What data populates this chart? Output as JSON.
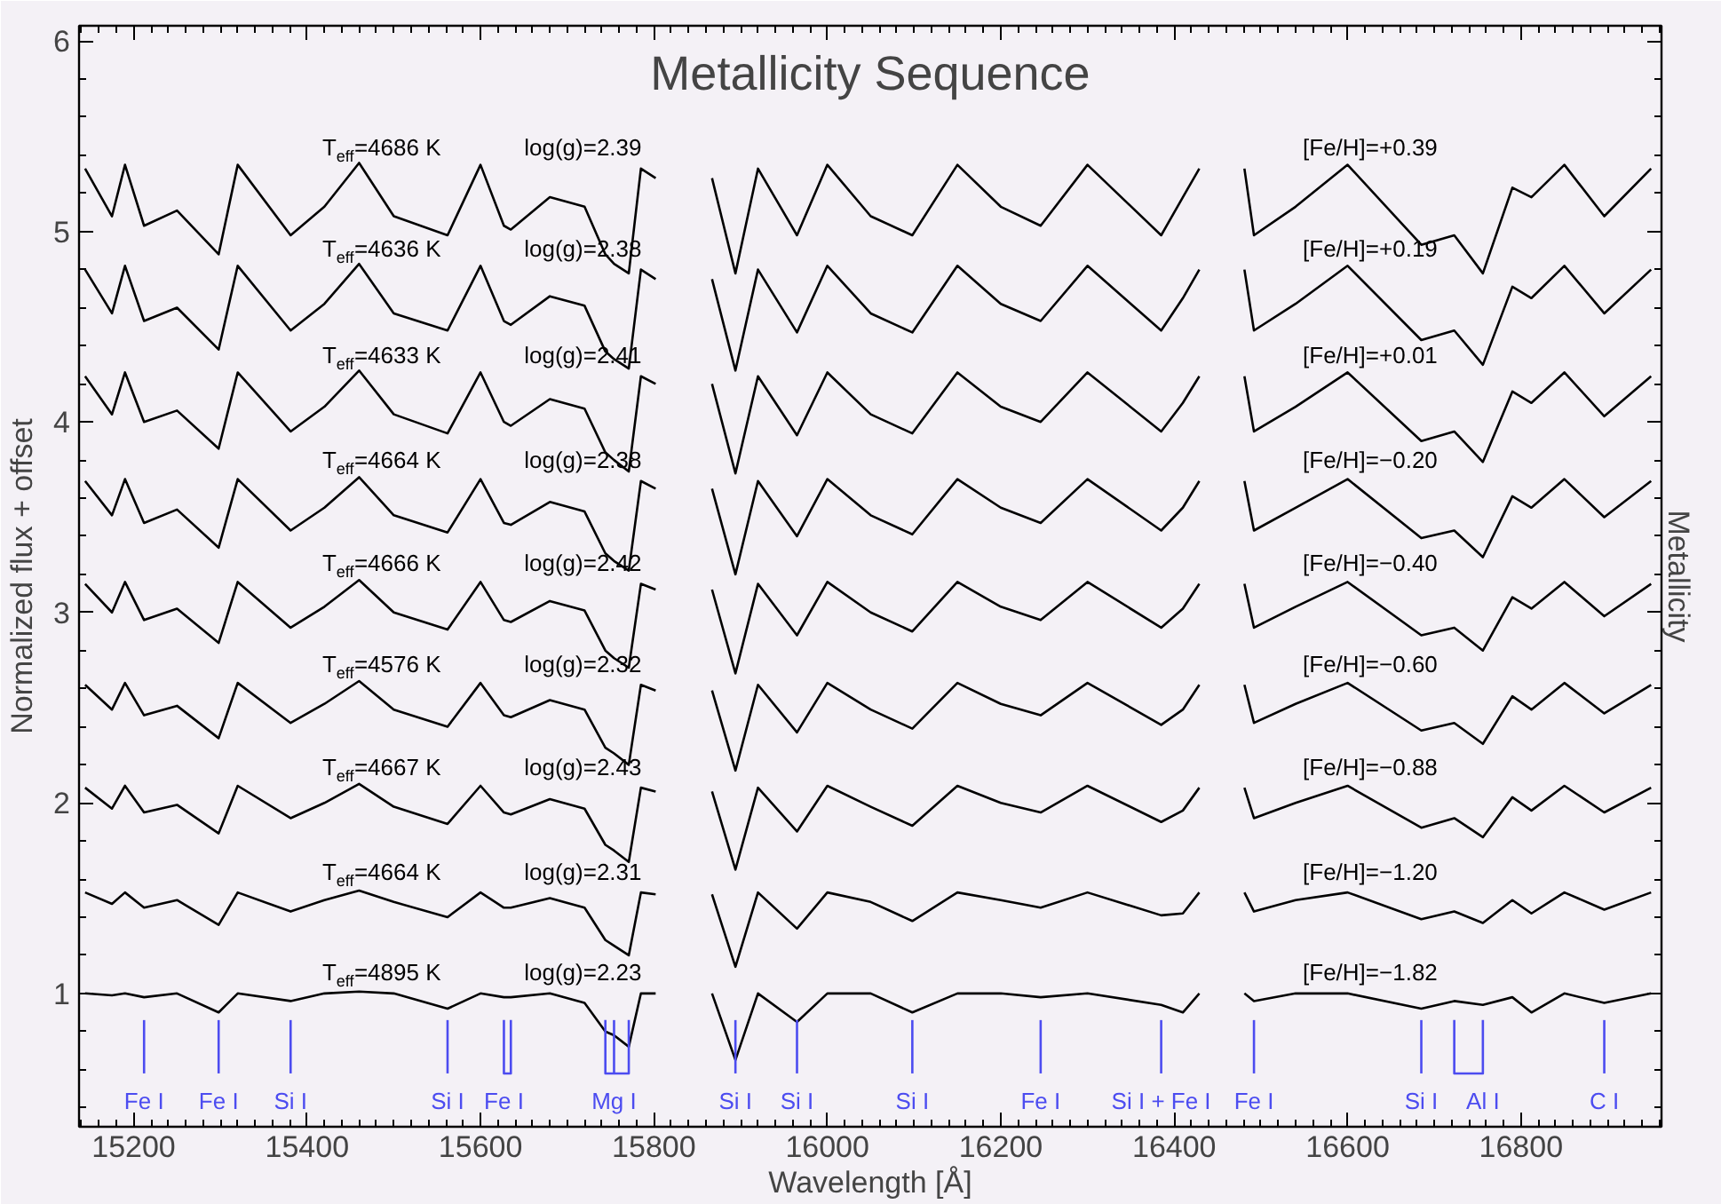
{
  "chart_data": {
    "type": "line",
    "title": "Metallicity Sequence",
    "xlabel": "Wavelength [Å]",
    "ylabel": "Normalized flux + offset",
    "xlim": [
      15137,
      16962
    ],
    "ylim": [
      0.3,
      6.08
    ],
    "xticks": [
      15200,
      15400,
      15600,
      15800,
      16000,
      16200,
      16400,
      16600,
      16800
    ],
    "yticks": [
      1,
      2,
      3,
      4,
      5,
      6
    ],
    "x": [
      15144,
      15175,
      15190,
      15212,
      15250,
      15298,
      15320,
      15381,
      15420,
      15460,
      15500,
      15562,
      15600,
      15627,
      15635,
      15680,
      15720,
      15744,
      15754,
      15771,
      15785,
      15802,
      15835,
      15867,
      15894,
      15920,
      15965,
      16000,
      16050,
      16098,
      16150,
      16200,
      16246,
      16300,
      16385,
      16410,
      16429,
      16455,
      16481,
      16492,
      16540,
      16600,
      16685,
      16723,
      16756,
      16790,
      16812,
      16850,
      16896,
      16950
    ],
    "series": [
      {
        "color": "#000000",
        "values": [
          5.33,
          5.08,
          5.35,
          5.03,
          5.11,
          4.88,
          5.35,
          4.98,
          5.13,
          5.36,
          5.08,
          4.98,
          5.35,
          5.03,
          5.01,
          5.18,
          5.13,
          4.88,
          4.83,
          4.78,
          5.33,
          5.28,
          null,
          5.28,
          4.78,
          5.33,
          4.98,
          5.35,
          5.08,
          4.98,
          5.35,
          5.13,
          5.03,
          5.35,
          4.98,
          5.18,
          5.33,
          null,
          5.33,
          4.98,
          5.13,
          5.35,
          4.93,
          4.98,
          4.78,
          5.23,
          5.18,
          5.35,
          5.08,
          5.33
        ]
      },
      {
        "color": "#000000",
        "values": [
          4.8,
          4.57,
          4.82,
          4.53,
          4.6,
          4.38,
          4.82,
          4.48,
          4.62,
          4.83,
          4.57,
          4.48,
          4.82,
          4.53,
          4.51,
          4.66,
          4.61,
          4.37,
          4.33,
          4.28,
          4.8,
          4.75,
          null,
          4.75,
          4.27,
          4.8,
          4.47,
          4.82,
          4.57,
          4.47,
          4.82,
          4.62,
          4.53,
          4.82,
          4.48,
          4.65,
          4.8,
          null,
          4.8,
          4.48,
          4.62,
          4.82,
          4.43,
          4.48,
          4.3,
          4.71,
          4.65,
          4.82,
          4.57,
          4.8
        ]
      },
      {
        "color": "#000000",
        "values": [
          4.24,
          4.04,
          4.26,
          4.0,
          4.06,
          3.86,
          4.26,
          3.95,
          4.08,
          4.27,
          4.04,
          3.94,
          4.26,
          4.0,
          3.98,
          4.12,
          4.07,
          3.84,
          3.8,
          3.74,
          4.24,
          4.2,
          null,
          4.2,
          3.73,
          4.24,
          3.93,
          4.26,
          4.04,
          3.94,
          4.26,
          4.08,
          4.0,
          4.26,
          3.95,
          4.1,
          4.24,
          null,
          4.24,
          3.95,
          4.08,
          4.26,
          3.9,
          3.95,
          3.79,
          4.16,
          4.1,
          4.26,
          4.03,
          4.24
        ]
      },
      {
        "color": "#000000",
        "values": [
          3.69,
          3.51,
          3.7,
          3.47,
          3.54,
          3.34,
          3.7,
          3.43,
          3.55,
          3.71,
          3.51,
          3.42,
          3.7,
          3.47,
          3.46,
          3.58,
          3.53,
          3.31,
          3.27,
          3.22,
          3.69,
          3.65,
          null,
          3.65,
          3.2,
          3.69,
          3.4,
          3.7,
          3.51,
          3.41,
          3.7,
          3.55,
          3.47,
          3.7,
          3.43,
          3.55,
          3.69,
          null,
          3.69,
          3.43,
          3.55,
          3.7,
          3.39,
          3.43,
          3.29,
          3.61,
          3.55,
          3.7,
          3.5,
          3.69
        ]
      },
      {
        "color": "#000000",
        "values": [
          3.15,
          3.0,
          3.16,
          2.96,
          3.02,
          2.84,
          3.16,
          2.92,
          3.03,
          3.17,
          3.0,
          2.91,
          3.16,
          2.96,
          2.95,
          3.06,
          3.01,
          2.8,
          2.76,
          2.71,
          3.15,
          3.12,
          null,
          3.12,
          2.68,
          3.15,
          2.88,
          3.16,
          3.0,
          2.9,
          3.16,
          3.03,
          2.96,
          3.16,
          2.92,
          3.02,
          3.15,
          null,
          3.15,
          2.92,
          3.03,
          3.16,
          2.88,
          2.92,
          2.8,
          3.08,
          3.02,
          3.16,
          2.98,
          3.15
        ]
      },
      {
        "color": "#000000",
        "values": [
          2.62,
          2.49,
          2.63,
          2.46,
          2.51,
          2.34,
          2.63,
          2.42,
          2.52,
          2.64,
          2.49,
          2.4,
          2.63,
          2.46,
          2.45,
          2.54,
          2.49,
          2.29,
          2.26,
          2.2,
          2.62,
          2.59,
          null,
          2.59,
          2.17,
          2.62,
          2.37,
          2.63,
          2.49,
          2.39,
          2.63,
          2.52,
          2.46,
          2.63,
          2.41,
          2.49,
          2.62,
          null,
          2.62,
          2.42,
          2.52,
          2.63,
          2.38,
          2.42,
          2.31,
          2.56,
          2.49,
          2.63,
          2.47,
          2.62
        ]
      },
      {
        "color": "#000000",
        "values": [
          2.08,
          1.97,
          2.09,
          1.95,
          1.99,
          1.84,
          2.09,
          1.92,
          2.0,
          2.1,
          1.98,
          1.89,
          2.09,
          1.95,
          1.94,
          2.02,
          1.97,
          1.78,
          1.75,
          1.69,
          2.08,
          2.06,
          null,
          2.06,
          1.65,
          2.08,
          1.85,
          2.09,
          1.98,
          1.88,
          2.09,
          2.0,
          1.95,
          2.09,
          1.9,
          1.96,
          2.08,
          null,
          2.08,
          1.92,
          2.0,
          2.09,
          1.87,
          1.92,
          1.82,
          2.03,
          1.96,
          2.09,
          1.95,
          2.08
        ]
      },
      {
        "color": "#000000",
        "values": [
          1.53,
          1.47,
          1.53,
          1.45,
          1.49,
          1.36,
          1.53,
          1.43,
          1.49,
          1.54,
          1.48,
          1.4,
          1.53,
          1.45,
          1.45,
          1.5,
          1.45,
          1.28,
          1.25,
          1.2,
          1.53,
          1.52,
          null,
          1.52,
          1.14,
          1.53,
          1.34,
          1.53,
          1.48,
          1.38,
          1.53,
          1.49,
          1.45,
          1.53,
          1.41,
          1.42,
          1.53,
          null,
          1.53,
          1.43,
          1.49,
          1.53,
          1.39,
          1.43,
          1.37,
          1.49,
          1.42,
          1.53,
          1.44,
          1.53
        ]
      },
      {
        "color": "#000000",
        "values": [
          1.0,
          0.99,
          1.0,
          0.98,
          1.0,
          0.9,
          1.0,
          0.96,
          1.0,
          1.01,
          1.0,
          0.92,
          1.0,
          0.98,
          0.98,
          1.0,
          0.95,
          0.8,
          0.78,
          0.72,
          1.0,
          1.0,
          null,
          1.0,
          0.65,
          1.0,
          0.85,
          1.0,
          1.0,
          0.9,
          1.0,
          1.0,
          0.98,
          1.0,
          0.94,
          0.9,
          1.0,
          null,
          1.0,
          0.96,
          1.0,
          1.0,
          0.92,
          0.96,
          0.94,
          0.98,
          0.9,
          1.0,
          0.95,
          1.0
        ]
      },
      {
        "color": "#4c4cf0",
        "x": [
          15212,
          15212
        ],
        "values": [
          0.86,
          0.58
        ],
        "value_labels": [
          null,
          "Fe I"
        ]
      },
      {
        "color": "#4c4cf0",
        "x": [
          15298,
          15298
        ],
        "values": [
          0.86,
          0.58
        ],
        "value_labels": [
          null,
          "Fe I"
        ]
      },
      {
        "color": "#4c4cf0",
        "x": [
          15381,
          15381
        ],
        "values": [
          0.86,
          0.58
        ],
        "value_labels": [
          null,
          "Si I"
        ]
      },
      {
        "color": "#4c4cf0",
        "x": [
          15562,
          15562
        ],
        "values": [
          0.86,
          0.58
        ],
        "value_labels": [
          null,
          "Si I"
        ]
      },
      {
        "color": "#4c4cf0",
        "x": [
          15627,
          15627,
          15635,
          15635
        ],
        "values": [
          0.86,
          0.58,
          0.58,
          0.86
        ],
        "value_labels": [
          null,
          "Fe I",
          null,
          null
        ]
      },
      {
        "color": "#4c4cf0",
        "x": [
          15744,
          15744,
          15771,
          15771
        ],
        "values": [
          0.86,
          0.58,
          0.58,
          0.86
        ]
      },
      {
        "color": "#4c4cf0",
        "x": [
          15754,
          15754
        ],
        "values": [
          0.86,
          0.58
        ],
        "value_labels": [
          null,
          "Mg I"
        ]
      },
      {
        "color": "#4c4cf0",
        "x": [
          15894,
          15894
        ],
        "values": [
          0.86,
          0.58
        ],
        "value_labels": [
          null,
          "Si I"
        ]
      },
      {
        "color": "#4c4cf0",
        "x": [
          15965,
          15965
        ],
        "values": [
          0.86,
          0.58
        ],
        "value_labels": [
          null,
          "Si I"
        ]
      },
      {
        "color": "#4c4cf0",
        "x": [
          16098,
          16098
        ],
        "values": [
          0.86,
          0.58
        ],
        "value_labels": [
          null,
          "Si I"
        ]
      },
      {
        "color": "#4c4cf0",
        "x": [
          16246,
          16246
        ],
        "values": [
          0.86,
          0.58
        ],
        "value_labels": [
          null,
          "Fe I"
        ]
      },
      {
        "color": "#4c4cf0",
        "x": [
          16385,
          16385
        ],
        "values": [
          0.86,
          0.58
        ],
        "value_labels": [
          null,
          "Si I + Fe I"
        ]
      },
      {
        "color": "#4c4cf0",
        "x": [
          16492,
          16492
        ],
        "values": [
          0.86,
          0.58
        ],
        "value_labels": [
          null,
          "Fe I"
        ]
      },
      {
        "color": "#4c4cf0",
        "x": [
          16685,
          16685
        ],
        "values": [
          0.86,
          0.58
        ],
        "value_labels": [
          null,
          "Si I"
        ]
      },
      {
        "color": "#4c4cf0",
        "x": [
          16723,
          16723,
          16756,
          16756
        ],
        "values": [
          0.86,
          0.58,
          0.58,
          0.86
        ],
        "value_labels": [
          null,
          null,
          "Al I",
          null
        ]
      },
      {
        "color": "#4c4cf0",
        "x": [
          16896,
          16896
        ],
        "values": [
          0.86,
          0.58
        ],
        "value_labels": [
          null,
          "C I"
        ]
      }
    ],
    "annotations": [
      "T$_{eff}$=4686 K",
      "log(g)=2.39",
      "[Fe/H]=+0.39",
      "T$_{eff}$=4636 K",
      "log(g)=2.38",
      "[Fe/H]=+0.19",
      "T$_{eff}$=4633 K",
      "log(g)=2.41",
      "[Fe/H]=+0.01",
      "T$_{eff}$=4664 K",
      "log(g)=2.38",
      "[Fe/H]=−0.20",
      "T$_{eff}$=4666 K",
      "log(g)=2.42",
      "[Fe/H]=−0.40",
      "T$_{eff}$=4576 K",
      "log(g)=2.32",
      "[Fe/H]=−0.60",
      "T$_{eff}$=4667 K",
      "log(g)=2.43",
      "[Fe/H]=−0.88",
      "T$_{eff}$=4664 K",
      "log(g)=2.31",
      "[Fe/H]=−1.20",
      "T$_{eff}$=4895 K",
      "log(g)=2.23",
      "[Fe/H]=−1.82",
      "Metallicity"
    ]
  }
}
